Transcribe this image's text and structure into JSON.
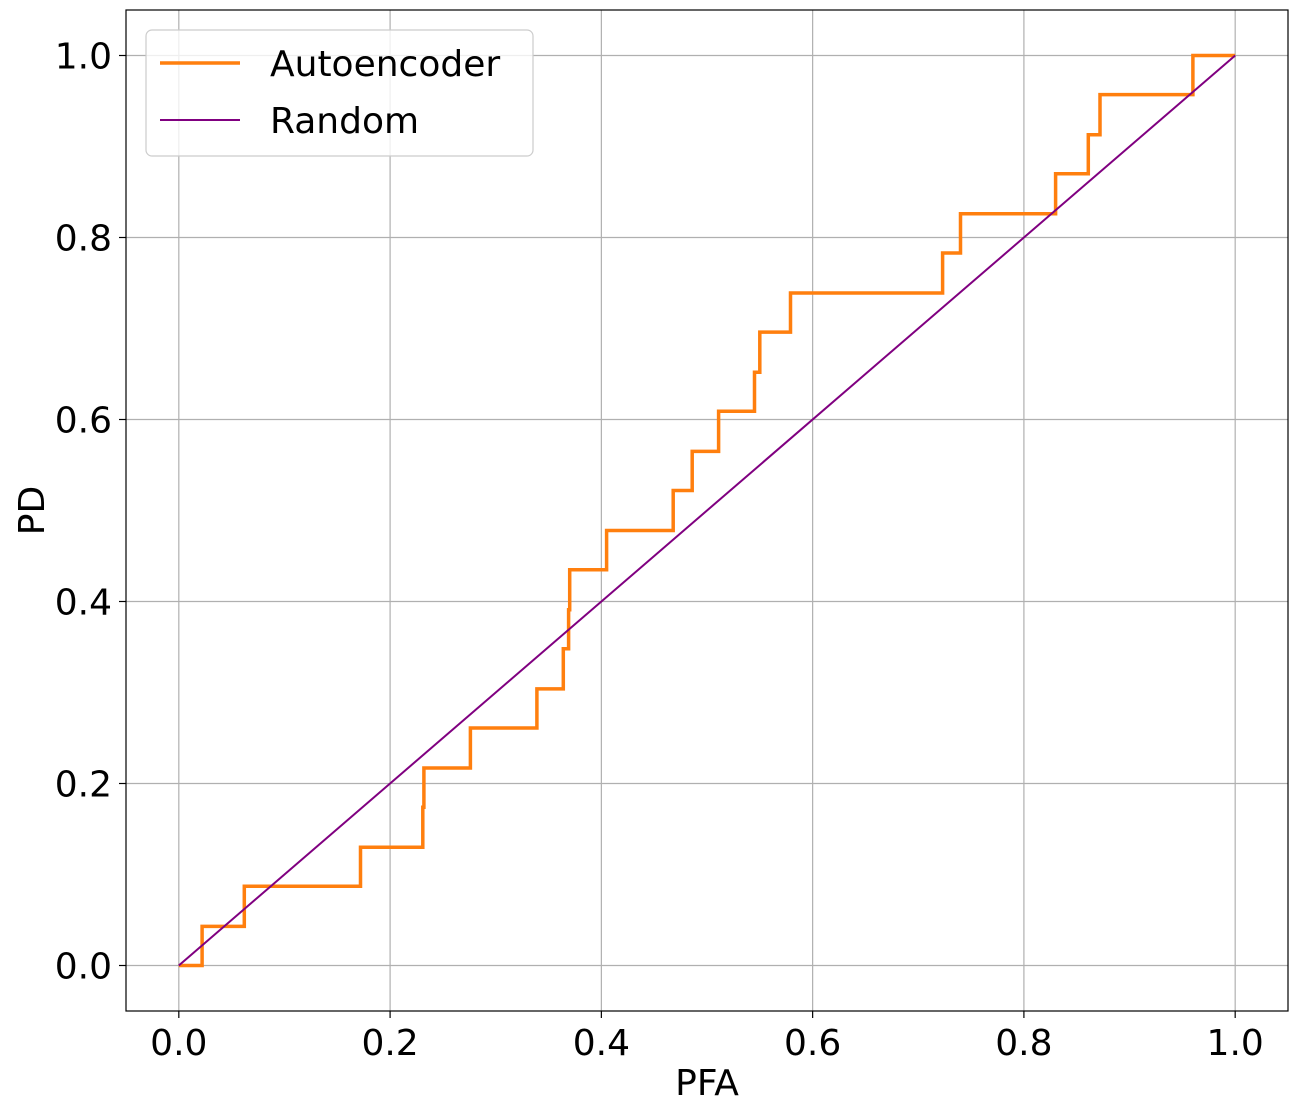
{
  "chart_data": {
    "type": "line",
    "title": "",
    "xlabel": "PFA",
    "ylabel": "PD",
    "xlim": [
      -0.05,
      1.05
    ],
    "ylim": [
      -0.05,
      1.05
    ],
    "xticks": [
      0.0,
      0.2,
      0.4,
      0.6,
      0.8,
      1.0
    ],
    "yticks": [
      0.0,
      0.2,
      0.4,
      0.6,
      0.8,
      1.0
    ],
    "xtick_labels": [
      "0.0",
      "0.2",
      "0.4",
      "0.6",
      "0.8",
      "1.0"
    ],
    "ytick_labels": [
      "0.0",
      "0.2",
      "0.4",
      "0.6",
      "0.8",
      "1.0"
    ],
    "grid": true,
    "legend": {
      "position": "top-left"
    },
    "series": [
      {
        "name": "Autoencoder",
        "color": "#ff7f0e",
        "step": true,
        "x": [
          0.0,
          0.022,
          0.022,
          0.062,
          0.062,
          0.172,
          0.172,
          0.231,
          0.231,
          0.232,
          0.232,
          0.276,
          0.276,
          0.339,
          0.339,
          0.364,
          0.364,
          0.369,
          0.369,
          0.37,
          0.37,
          0.405,
          0.405,
          0.468,
          0.468,
          0.486,
          0.486,
          0.511,
          0.511,
          0.545,
          0.545,
          0.55,
          0.55,
          0.579,
          0.579,
          0.723,
          0.723,
          0.74,
          0.74,
          0.83,
          0.83,
          0.861,
          0.861,
          0.872,
          0.872,
          0.96,
          0.96,
          1.0
        ],
        "y": [
          0.0,
          0.0,
          0.043,
          0.043,
          0.087,
          0.087,
          0.13,
          0.13,
          0.174,
          0.174,
          0.217,
          0.217,
          0.261,
          0.261,
          0.304,
          0.304,
          0.348,
          0.348,
          0.391,
          0.391,
          0.435,
          0.435,
          0.478,
          0.478,
          0.522,
          0.522,
          0.565,
          0.565,
          0.609,
          0.609,
          0.652,
          0.652,
          0.696,
          0.696,
          0.739,
          0.739,
          0.783,
          0.783,
          0.826,
          0.826,
          0.87,
          0.87,
          0.913,
          0.913,
          0.957,
          0.957,
          1.0,
          1.0
        ]
      },
      {
        "name": "Random",
        "color": "#800080",
        "step": false,
        "x": [
          0.0,
          1.0
        ],
        "y": [
          0.0,
          1.0
        ]
      }
    ]
  }
}
